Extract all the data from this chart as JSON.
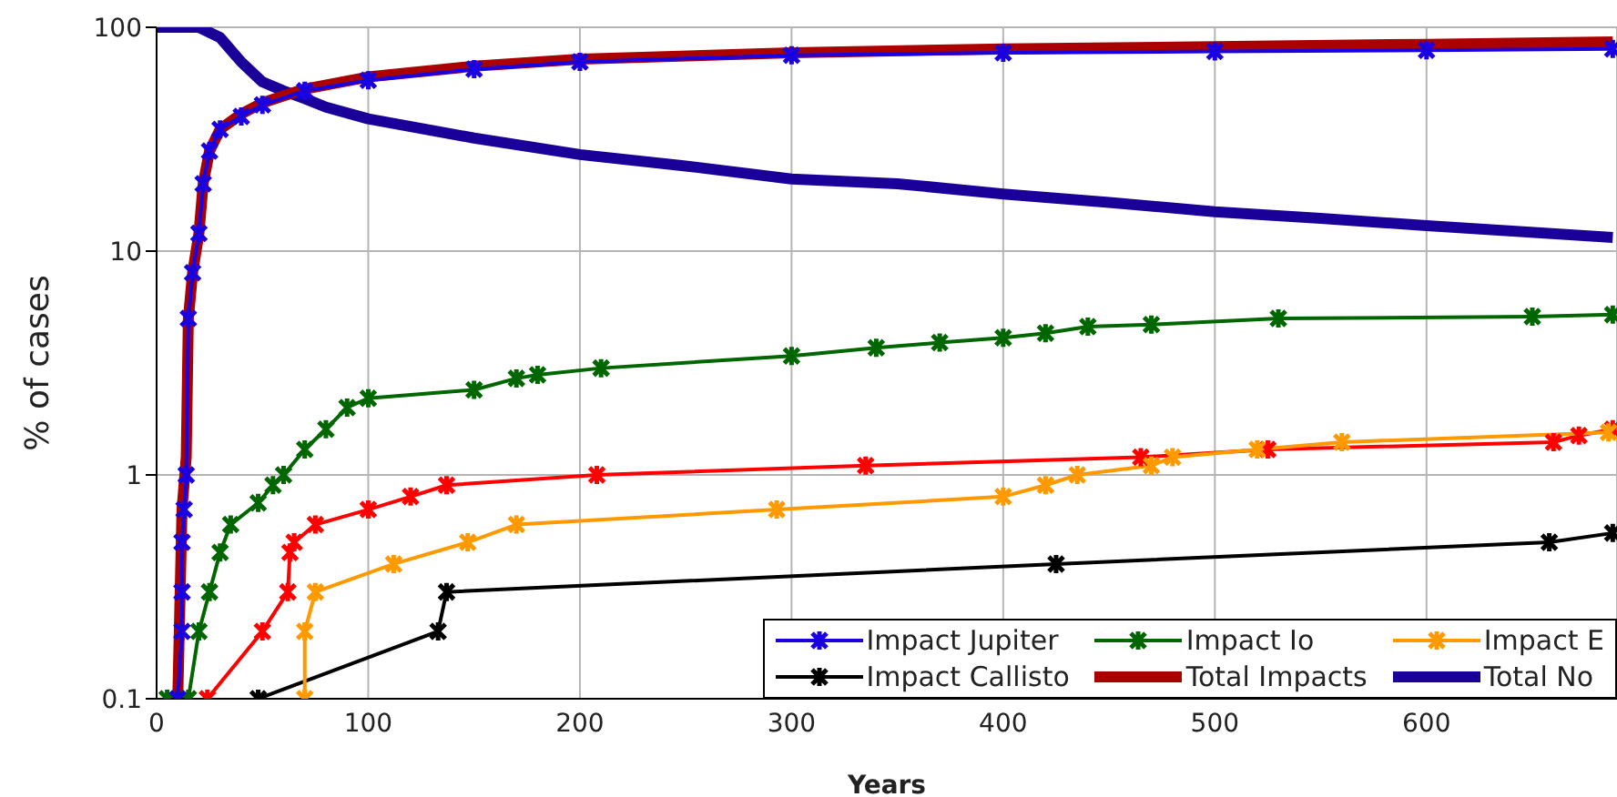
{
  "chart_data": {
    "type": "line",
    "xlabel": "Years",
    "ylabel": "% of cases",
    "log": "y",
    "grid": true,
    "legend": "bottom right",
    "marker": "cross",
    "xlim": [
      0,
      690
    ],
    "xticks": [
      0,
      100,
      200,
      300,
      400,
      500,
      600
    ],
    "ylim": [
      0.1,
      100
    ],
    "yticks": [
      0.1,
      1,
      10,
      100
    ],
    "series": [
      {
        "name": "Impact Jupiter",
        "color": "#1a00e0",
        "x": [
          10,
          12,
          12,
          12,
          13,
          14,
          15,
          17,
          20,
          22,
          25,
          30,
          40,
          50,
          70,
          100,
          150,
          200,
          300,
          400,
          500,
          600,
          688
        ],
        "values": [
          0.1,
          0.2,
          0.3,
          0.5,
          0.7,
          1,
          5,
          8,
          12,
          20,
          28,
          35,
          40,
          45,
          52,
          58,
          65,
          70,
          75,
          77,
          78,
          79,
          80
        ]
      },
      {
        "name": "Impact Io",
        "color": "#006600",
        "x": [
          5,
          15,
          20,
          25,
          30,
          35,
          48,
          55,
          60,
          70,
          80,
          90,
          100,
          150,
          170,
          180,
          210,
          300,
          340,
          370,
          400,
          420,
          440,
          470,
          530,
          650,
          688
        ],
        "values": [
          0.1,
          0.1,
          0.2,
          0.3,
          0.45,
          0.6,
          0.75,
          0.9,
          1.0,
          1.3,
          1.6,
          2.0,
          2.2,
          2.4,
          2.7,
          2.8,
          3.0,
          3.4,
          3.7,
          3.9,
          4.1,
          4.3,
          4.6,
          4.7,
          5.0,
          5.1,
          5.2
        ]
      },
      {
        "name": "Impact E",
        "color": "#ff9900",
        "x": [
          70,
          70,
          75,
          112,
          147,
          170,
          293,
          400,
          420,
          435,
          470,
          480,
          520,
          560,
          686
        ],
        "values": [
          0.1,
          0.2,
          0.3,
          0.4,
          0.5,
          0.6,
          0.7,
          0.8,
          0.9,
          1.0,
          1.1,
          1.2,
          1.3,
          1.4,
          1.55
        ]
      },
      {
        "name": "Impact Callisto",
        "color": "#000000",
        "x": [
          48,
          133,
          137,
          425,
          658,
          688
        ],
        "values": [
          0.1,
          0.2,
          0.3,
          0.4,
          0.5,
          0.55
        ]
      },
      {
        "name": "Total Impacts",
        "color": "#aa0000",
        "marker": "none",
        "x": [
          10,
          12,
          14,
          15,
          17,
          20,
          22,
          25,
          30,
          40,
          50,
          70,
          100,
          150,
          200,
          300,
          400,
          500,
          600,
          688
        ],
        "values": [
          0.1,
          0.7,
          1.2,
          5,
          8,
          12,
          20,
          28,
          35,
          41,
          46,
          53,
          60,
          67,
          72,
          77,
          80,
          82,
          84,
          86
        ]
      },
      {
        "name": "Total No",
        "color": "#1a0099",
        "marker": "none",
        "x": [
          0,
          20,
          30,
          40,
          50,
          60,
          70,
          80,
          100,
          150,
          200,
          250,
          300,
          350,
          400,
          450,
          500,
          550,
          600,
          688
        ],
        "values": [
          100,
          100,
          90,
          70,
          57,
          52,
          48,
          44,
          39,
          32,
          27,
          24,
          21,
          20,
          18,
          16.5,
          15,
          14,
          13,
          11.5
        ]
      },
      {
        "color": "#ff0000",
        "x": [
          24,
          50,
          62,
          63,
          65,
          75,
          100,
          120,
          137,
          208,
          335,
          465,
          525,
          660,
          672,
          688
        ],
        "values": [
          0.1,
          0.2,
          0.3,
          0.45,
          0.5,
          0.6,
          0.7,
          0.8,
          0.9,
          1.0,
          1.1,
          1.2,
          1.3,
          1.4,
          1.5,
          1.6
        ]
      }
    ]
  }
}
